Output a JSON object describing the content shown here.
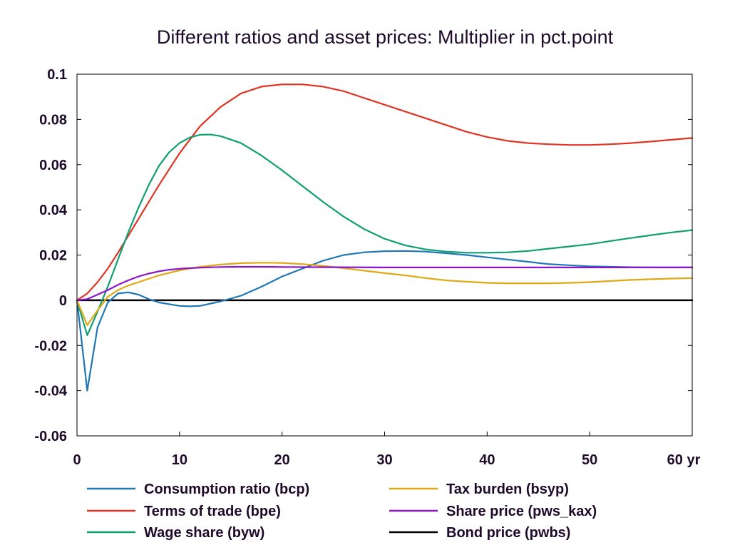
{
  "chart_data": {
    "type": "line",
    "title": "Different ratios and asset prices: Multiplier in pct.point",
    "xlabel": "",
    "ylabel": "",
    "xlim": [
      0,
      60
    ],
    "ylim": [
      -0.06,
      0.1
    ],
    "x_ticks": [
      {
        "value": 0,
        "label": "0"
      },
      {
        "value": 10,
        "label": "10"
      },
      {
        "value": 20,
        "label": "20"
      },
      {
        "value": 30,
        "label": "30"
      },
      {
        "value": 40,
        "label": "40"
      },
      {
        "value": 50,
        "label": "50"
      },
      {
        "value": 60,
        "label": "60 yr"
      }
    ],
    "y_ticks": [
      {
        "value": 0.1,
        "label": "0.1"
      },
      {
        "value": 0.08,
        "label": "0.08"
      },
      {
        "value": 0.06,
        "label": "0.06"
      },
      {
        "value": 0.04,
        "label": "0.04"
      },
      {
        "value": 0.02,
        "label": "0.02"
      },
      {
        "value": 0,
        "label": "0"
      },
      {
        "value": -0.02,
        "label": "-0.02"
      },
      {
        "value": -0.04,
        "label": "-0.04"
      },
      {
        "value": -0.06,
        "label": "-0.06"
      }
    ],
    "grid": false,
    "legend_position": "bottom",
    "series": [
      {
        "name": "Consumption ratio (bcp)",
        "color": "#1f77b4",
        "x": [
          0,
          1,
          2,
          3,
          4,
          5,
          6,
          7,
          8,
          10,
          11,
          12,
          14,
          16,
          18,
          20,
          22,
          24,
          26,
          28,
          30,
          32,
          34,
          36,
          38,
          40,
          42,
          44,
          46,
          48,
          50,
          52,
          54,
          56,
          58,
          60
        ],
        "y": [
          0,
          -0.04,
          -0.012,
          -0.001,
          0.003,
          0.0035,
          0.0025,
          0.0005,
          -0.001,
          -0.0025,
          -0.0027,
          -0.0025,
          -0.0005,
          0.002,
          0.006,
          0.0105,
          0.014,
          0.0175,
          0.02,
          0.0212,
          0.0217,
          0.0218,
          0.0215,
          0.0208,
          0.02,
          0.019,
          0.018,
          0.017,
          0.016,
          0.0155,
          0.015,
          0.0148,
          0.0146,
          0.0145,
          0.0145,
          0.0145
        ]
      },
      {
        "name": "Terms of trade (bpe)",
        "color": "#e03424",
        "x": [
          0,
          1,
          2,
          3,
          4,
          6,
          8,
          10,
          12,
          14,
          16,
          18,
          20,
          22,
          24,
          26,
          28,
          30,
          32,
          34,
          36,
          38,
          40,
          42,
          44,
          46,
          48,
          50,
          52,
          54,
          56,
          58,
          60
        ],
        "y": [
          0,
          0.003,
          0.008,
          0.014,
          0.021,
          0.036,
          0.051,
          0.065,
          0.077,
          0.0855,
          0.0915,
          0.0945,
          0.0955,
          0.0955,
          0.0945,
          0.0925,
          0.0895,
          0.0865,
          0.0835,
          0.0805,
          0.0775,
          0.0745,
          0.0722,
          0.0705,
          0.0695,
          0.069,
          0.0687,
          0.0687,
          0.069,
          0.0695,
          0.0702,
          0.071,
          0.0718
        ]
      },
      {
        "name": "Wage share (byw)",
        "color": "#0f9f70",
        "x": [
          0,
          1,
          2,
          3,
          4,
          5,
          6,
          7,
          8,
          9,
          10,
          11,
          12,
          13,
          14,
          16,
          18,
          20,
          22,
          24,
          26,
          28,
          30,
          32,
          34,
          36,
          38,
          40,
          42,
          44,
          46,
          48,
          50,
          52,
          54,
          56,
          58,
          60
        ],
        "y": [
          0,
          -0.0155,
          -0.005,
          0.006,
          0.018,
          0.03,
          0.041,
          0.051,
          0.0595,
          0.0655,
          0.0695,
          0.072,
          0.0732,
          0.0733,
          0.0726,
          0.0695,
          0.064,
          0.0575,
          0.0505,
          0.0435,
          0.037,
          0.0315,
          0.0272,
          0.0243,
          0.0225,
          0.0215,
          0.021,
          0.021,
          0.0212,
          0.0218,
          0.0228,
          0.0238,
          0.0248,
          0.0262,
          0.0275,
          0.0288,
          0.03,
          0.031
        ]
      },
      {
        "name": "Tax burden (bsyp)",
        "color": "#e0a814",
        "x": [
          0,
          1,
          2,
          3,
          4,
          5,
          6,
          8,
          10,
          12,
          14,
          16,
          18,
          20,
          22,
          24,
          26,
          28,
          30,
          32,
          34,
          36,
          38,
          40,
          42,
          44,
          46,
          48,
          50,
          52,
          54,
          56,
          58,
          60
        ],
        "y": [
          0,
          -0.011,
          -0.0045,
          0.0015,
          0.0045,
          0.0065,
          0.008,
          0.011,
          0.0132,
          0.0148,
          0.0158,
          0.0164,
          0.0166,
          0.0165,
          0.016,
          0.0152,
          0.0142,
          0.0131,
          0.012,
          0.011,
          0.0098,
          0.0088,
          0.0082,
          0.0077,
          0.0075,
          0.0075,
          0.0075,
          0.0077,
          0.008,
          0.0085,
          0.009,
          0.0093,
          0.0096,
          0.0098
        ]
      },
      {
        "name": "Share price (pws_kax)",
        "color": "#8b14c8",
        "x": [
          0,
          1,
          2,
          3,
          4,
          5,
          6,
          7,
          8,
          9,
          10,
          11,
          12,
          14,
          16,
          18,
          20,
          25,
          30,
          35,
          40,
          45,
          50,
          55,
          60
        ],
        "y": [
          0,
          0.0005,
          0.0025,
          0.0045,
          0.0068,
          0.0088,
          0.0105,
          0.0118,
          0.0128,
          0.0135,
          0.0139,
          0.0142,
          0.0144,
          0.0147,
          0.0148,
          0.0148,
          0.0147,
          0.0146,
          0.0145,
          0.0145,
          0.0145,
          0.0145,
          0.0145,
          0.0145,
          0.0145
        ]
      },
      {
        "name": "Bond price (pwbs)",
        "color": "#000000",
        "x": [
          0,
          60
        ],
        "y": [
          0,
          0
        ]
      }
    ]
  }
}
